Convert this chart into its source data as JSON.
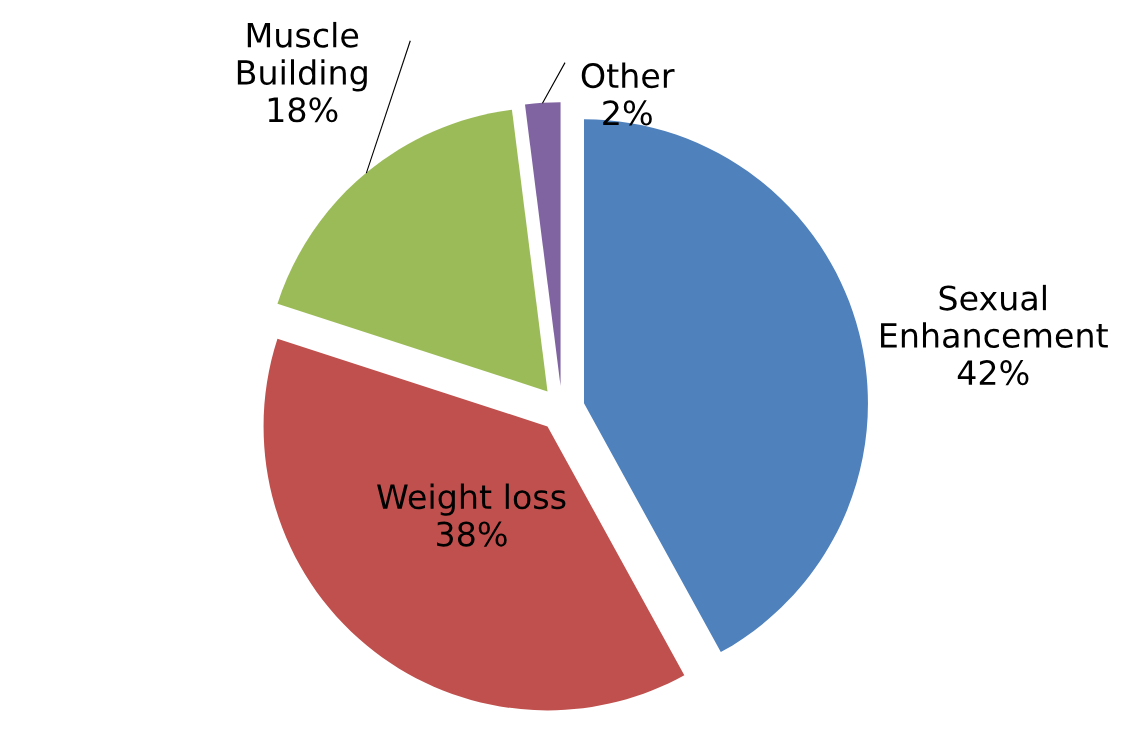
{
  "chart_data": {
    "type": "pie",
    "categories": [
      "Sexual Enhancement",
      "Weight loss",
      "Muscle Building",
      "Other"
    ],
    "values": [
      42,
      38,
      18,
      2
    ],
    "value_labels": [
      "42%",
      "38%",
      "18%",
      "2%"
    ],
    "colors": [
      "#4f81bd",
      "#c0504d",
      "#9bbb59",
      "#8064a2"
    ]
  }
}
